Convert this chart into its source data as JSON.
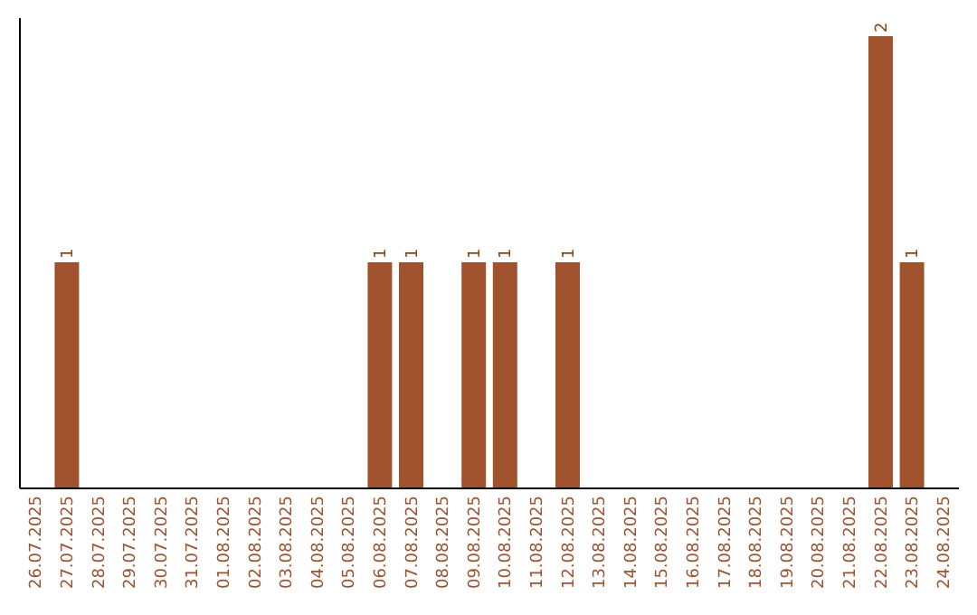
{
  "chart_data": {
    "type": "bar",
    "categories": [
      "26.07.2025",
      "27.07.2025",
      "28.07.2025",
      "29.07.2025",
      "30.07.2025",
      "31.07.2025",
      "01.08.2025",
      "02.08.2025",
      "03.08.2025",
      "04.08.2025",
      "05.08.2025",
      "06.08.2025",
      "07.08.2025",
      "08.08.2025",
      "09.08.2025",
      "10.08.2025",
      "11.08.2025",
      "12.08.2025",
      "13.08.2025",
      "14.08.2025",
      "15.08.2025",
      "16.08.2025",
      "17.08.2025",
      "18.08.2025",
      "19.08.2025",
      "20.08.2025",
      "21.08.2025",
      "22.08.2025",
      "23.08.2025",
      "24.08.2025"
    ],
    "values": [
      0,
      1,
      0,
      0,
      0,
      0,
      0,
      0,
      0,
      0,
      0,
      1,
      1,
      0,
      1,
      1,
      0,
      1,
      0,
      0,
      0,
      0,
      0,
      0,
      0,
      0,
      0,
      2,
      1,
      0
    ],
    "color": "#a0522d",
    "ylim": [
      0,
      2.08
    ],
    "value_labels": [
      null,
      "1",
      null,
      null,
      null,
      null,
      null,
      null,
      null,
      null,
      null,
      "1",
      "1",
      null,
      "1",
      "1",
      null,
      "1",
      null,
      null,
      null,
      null,
      null,
      null,
      null,
      null,
      null,
      "2",
      "1",
      null
    ],
    "tick_labels": "x"
  }
}
